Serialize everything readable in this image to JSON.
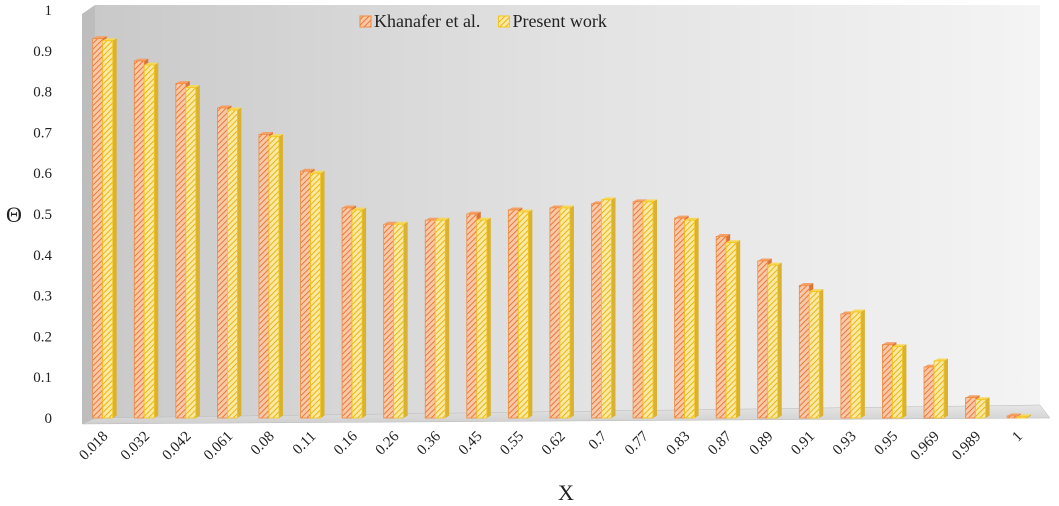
{
  "chart_data": {
    "type": "bar",
    "xlabel": "X",
    "ylabel": "Θ",
    "ylim": [
      0,
      1
    ],
    "yticks": [
      "0",
      "0.1",
      "0.2",
      "0.3",
      "0.4",
      "0.5",
      "0.6",
      "0.7",
      "0.8",
      "0.9",
      "1"
    ],
    "categories": [
      "0.018",
      "0.032",
      "0.042",
      "0.061",
      "0.08",
      "0.11",
      "0.16",
      "0.26",
      "0.36",
      "0.45",
      "0.55",
      "0.62",
      "0.7",
      "0.77",
      "0.83",
      "0.87",
      "0.89",
      "0.91",
      "0.93",
      "0.95",
      "0.969",
      "0.989",
      "1"
    ],
    "series": [
      {
        "name": "Khanafer et al.",
        "color": "#f28a3c",
        "values": [
          0.93,
          0.875,
          0.82,
          0.76,
          0.695,
          0.605,
          0.515,
          0.475,
          0.485,
          0.5,
          0.51,
          0.515,
          0.525,
          0.53,
          0.49,
          0.445,
          0.385,
          0.325,
          0.255,
          0.18,
          0.125,
          0.05,
          0.005
        ]
      },
      {
        "name": "Present work",
        "color": "#f5c518",
        "values": [
          0.925,
          0.865,
          0.81,
          0.755,
          0.69,
          0.6,
          0.51,
          0.475,
          0.485,
          0.485,
          0.505,
          0.515,
          0.535,
          0.53,
          0.485,
          0.43,
          0.375,
          0.31,
          0.26,
          0.175,
          0.14,
          0.045,
          0.003
        ]
      }
    ],
    "legend_position": "top-center",
    "grid": false
  }
}
